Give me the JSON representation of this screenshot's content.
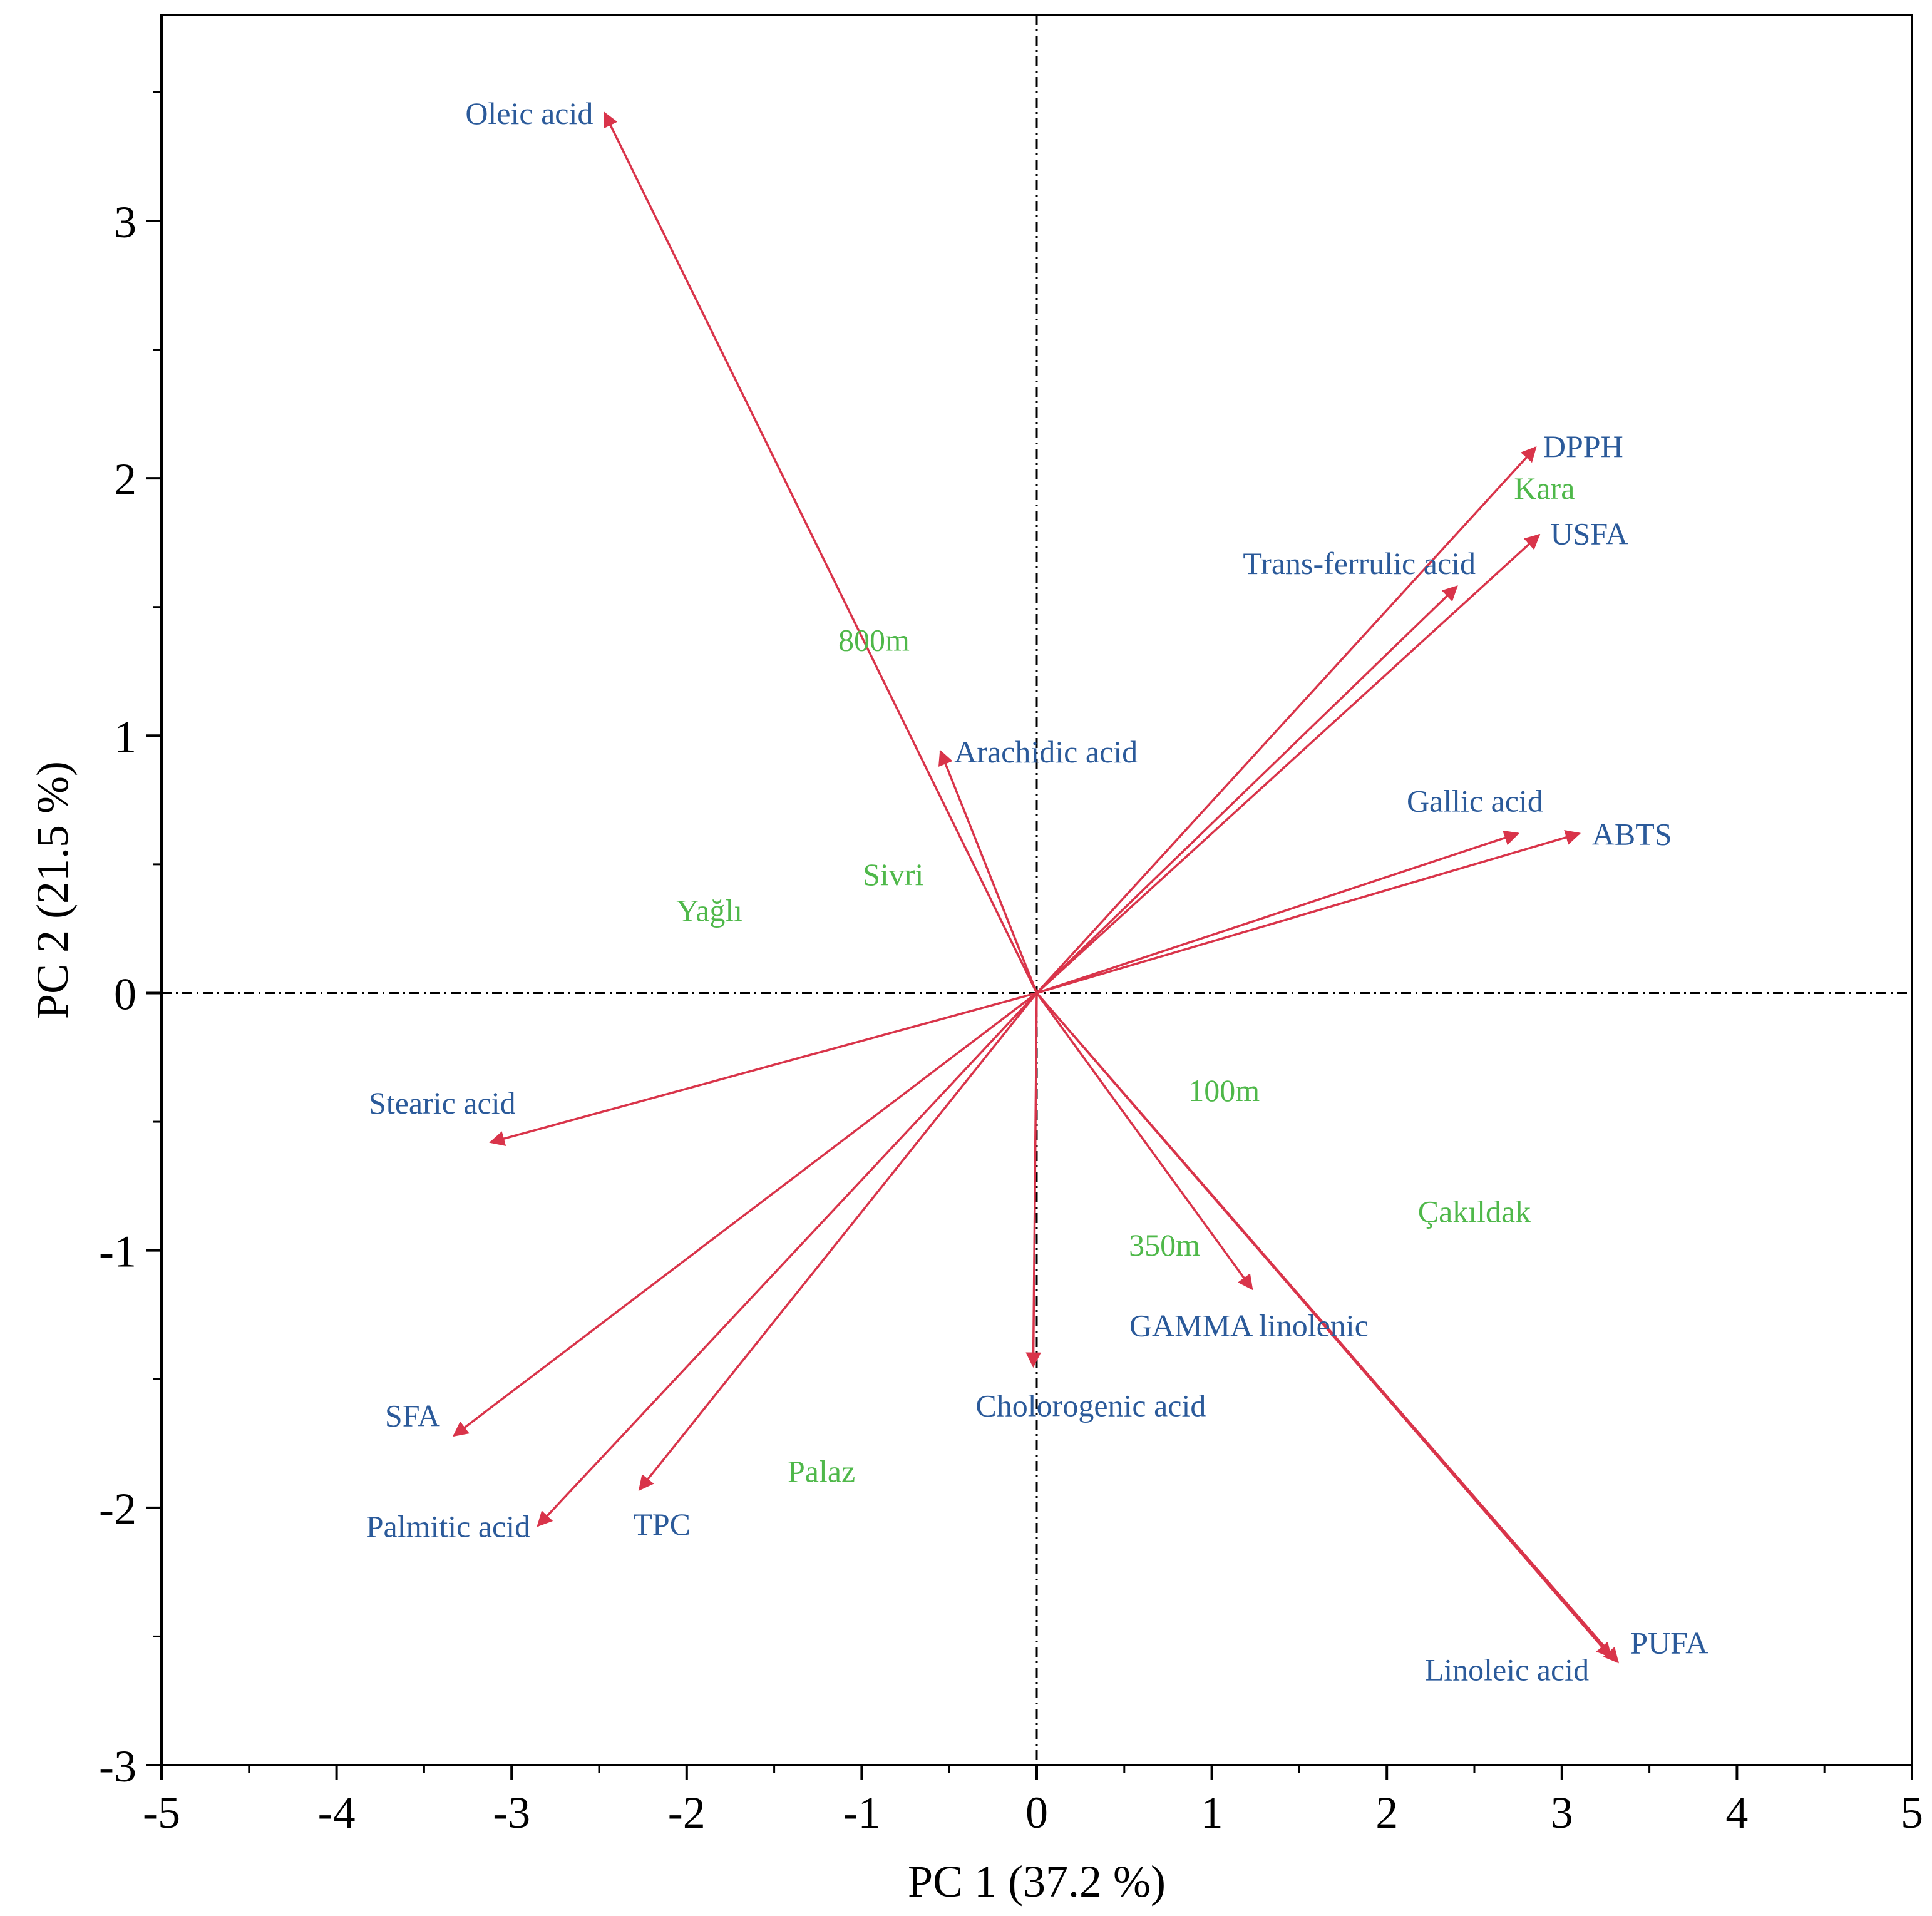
{
  "chart_data": {
    "type": "biplot",
    "title": "",
    "xlabel": "PC 1  (37.2 %)",
    "ylabel": "PC 2  (21.5 %)",
    "xlim": [
      -5,
      5
    ],
    "ylim": [
      -3,
      3.8
    ],
    "xticks": [
      -5,
      -4,
      -3,
      -2,
      -1,
      0,
      1,
      2,
      3,
      4,
      5
    ],
    "yticks": [
      -3,
      -2,
      -1,
      0,
      1,
      2,
      3
    ],
    "xtick_labels": [
      "-5",
      "-4",
      "-3",
      "-2",
      "-1",
      "0",
      "1",
      "2",
      "3",
      "4",
      "5"
    ],
    "ytick_labels": [
      "-3",
      "-2",
      "-1",
      "0",
      "1",
      "2",
      "3"
    ],
    "colors": {
      "vector": "#d9344a",
      "variable_label": "#2b5a9a",
      "observation_label": "#4fb84a",
      "axis": "#000000"
    },
    "variables": [
      {
        "name": "Oleic acid",
        "x": -2.47,
        "y": 3.42
      },
      {
        "name": "DPPH",
        "x": 2.85,
        "y": 2.12
      },
      {
        "name": "USFA",
        "x": 2.87,
        "y": 1.78
      },
      {
        "name": "Trans-ferrulic acid",
        "x": 2.4,
        "y": 1.58
      },
      {
        "name": "Arachidic acid",
        "x": -0.55,
        "y": 0.94
      },
      {
        "name": "Gallic acid",
        "x": 2.75,
        "y": 0.62
      },
      {
        "name": "ABTS",
        "x": 3.1,
        "y": 0.62
      },
      {
        "name": "Stearic acid",
        "x": -3.12,
        "y": -0.58
      },
      {
        "name": "GAMMA linolenic",
        "x": 1.23,
        "y": -1.15
      },
      {
        "name": "Cholorogenic acid",
        "x": -0.02,
        "y": -1.45
      },
      {
        "name": "SFA",
        "x": -3.33,
        "y": -1.72
      },
      {
        "name": "Palmitic acid",
        "x": -2.85,
        "y": -2.07
      },
      {
        "name": "TPC",
        "x": -2.27,
        "y": -1.93
      },
      {
        "name": "PUFA",
        "x": 3.32,
        "y": -2.6
      },
      {
        "name": "Linoleic acid",
        "x": 3.28,
        "y": -2.58
      }
    ],
    "observations": [
      {
        "name": "Kara",
        "x": 2.9,
        "y": 1.92
      },
      {
        "name": "800m",
        "x": -0.93,
        "y": 1.33
      },
      {
        "name": "Sivri",
        "x": -0.82,
        "y": 0.42
      },
      {
        "name": "Yağlı",
        "x": -1.87,
        "y": 0.28
      },
      {
        "name": "100m",
        "x": 1.07,
        "y": -0.42
      },
      {
        "name": "Çakıldak",
        "x": 2.5,
        "y": -0.89
      },
      {
        "name": "350m",
        "x": 0.73,
        "y": -1.02
      },
      {
        "name": "Palaz",
        "x": -1.23,
        "y": -1.9
      }
    ]
  }
}
